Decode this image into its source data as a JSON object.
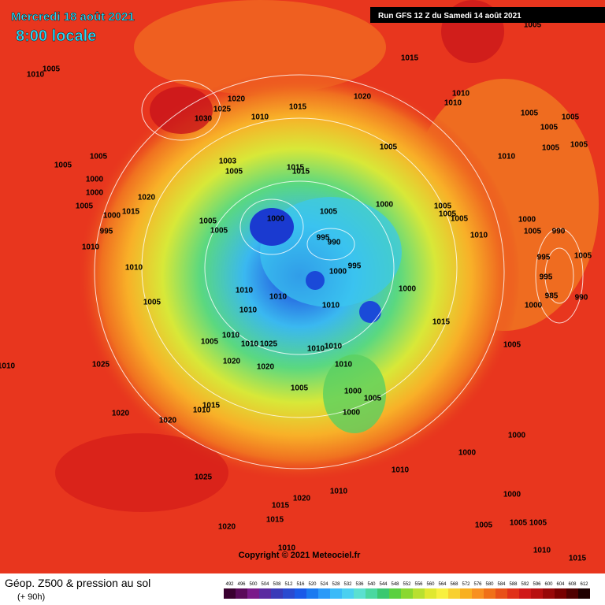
{
  "header": {
    "date": "Mercredi 18 août 2021",
    "time": "8:00 locale",
    "run": "Run GFS 12 Z du Samedi 14 août 2021"
  },
  "isobars": [
    "1005",
    "1015",
    "1005",
    "1010",
    "1020",
    "1015",
    "1020",
    "1010",
    "1010",
    "1025",
    "1030",
    "1010",
    "1005",
    "1005",
    "1005",
    "1005",
    "1005",
    "1005",
    "1010",
    "1005",
    "1005",
    "1003",
    "1005",
    "1015",
    "1015",
    "1000",
    "1020",
    "1000",
    "1005",
    "1015",
    "1000",
    "1000",
    "1005",
    "1005",
    "1005",
    "1000",
    "1005",
    "1005",
    "1000",
    "995",
    "1005",
    "995",
    "990",
    "1010",
    "1005",
    "990",
    "1010",
    "995",
    "1005",
    "1000",
    "995",
    "1010",
    "995",
    "1000",
    "985",
    "990",
    "1010",
    "1010",
    "1005",
    "1010",
    "1000",
    "1010",
    "1015",
    "1005",
    "1010",
    "1025",
    "1010",
    "1010",
    "1010",
    "1005",
    "1010",
    "1025",
    "1020",
    "1020",
    "1010",
    "1000",
    "1005",
    "1005",
    "1015",
    "1010",
    "1020",
    "1020",
    "1000",
    "1000",
    "1000",
    "1010",
    "1025",
    "1010",
    "1000",
    "1020",
    "1015",
    "1015",
    "1020",
    "1005",
    "1005",
    "1005",
    "1010",
    "1010",
    "1015"
  ],
  "footer": {
    "title": "Géop. Z500 & pression au sol",
    "subtitle": "(+ 90h)",
    "copyright": "Copyright © 2021 Meteociel.fr"
  },
  "scale": {
    "labels": [
      492,
      496,
      500,
      504,
      508,
      512,
      516,
      520,
      524,
      528,
      532,
      536,
      540,
      544,
      548,
      552,
      556,
      560,
      564,
      568,
      572,
      576,
      580,
      584,
      588,
      592,
      596,
      600,
      604,
      608,
      612
    ],
    "colors": [
      "#3a0030",
      "#5a0a5a",
      "#7a1a8a",
      "#5a2aa0",
      "#3a3ab8",
      "#2a4ad0",
      "#1a5ae8",
      "#1a7af0",
      "#2a9af8",
      "#3abaf8",
      "#4ad0f0",
      "#5ae0d0",
      "#4ad8a0",
      "#3ac870",
      "#5ad040",
      "#8ad830",
      "#b8e030",
      "#e0e830",
      "#f8f040",
      "#f8d030",
      "#f8b020",
      "#f89020",
      "#f07018",
      "#e85018",
      "#e03018",
      "#d01818",
      "#b81010",
      "#980808",
      "#780000",
      "#500000",
      "#200000"
    ]
  }
}
